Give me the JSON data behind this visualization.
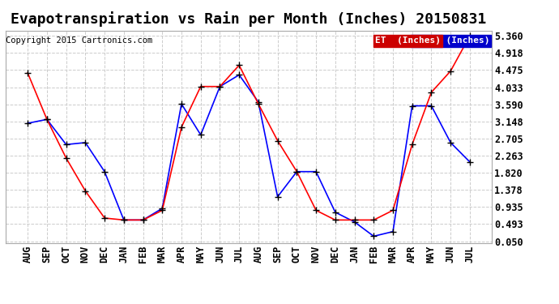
{
  "title": "Evapotranspiration vs Rain per Month (Inches) 20150831",
  "copyright": "Copyright 2015 Cartronics.com",
  "months": [
    "AUG",
    "SEP",
    "OCT",
    "NOV",
    "DEC",
    "JAN",
    "FEB",
    "MAR",
    "APR",
    "MAY",
    "JUN",
    "JUL",
    "AUG",
    "SEP",
    "OCT",
    "NOV",
    "DEC",
    "JAN",
    "FEB",
    "MAR",
    "APR",
    "MAY",
    "JUN",
    "JUL"
  ],
  "rain": [
    3.1,
    3.2,
    2.55,
    2.6,
    1.85,
    0.6,
    0.6,
    0.9,
    3.6,
    2.8,
    4.05,
    4.35,
    3.65,
    1.2,
    1.85,
    1.85,
    0.8,
    0.55,
    0.18,
    0.3,
    3.55,
    3.55,
    2.6,
    2.1
  ],
  "et": [
    4.4,
    3.2,
    2.2,
    1.35,
    0.65,
    0.6,
    0.6,
    0.85,
    3.0,
    4.05,
    4.05,
    4.6,
    3.6,
    2.65,
    1.85,
    0.85,
    0.6,
    0.6,
    0.6,
    0.85,
    2.55,
    3.9,
    4.45,
    5.36
  ],
  "rain_color": "#0000ff",
  "et_color": "#ff0000",
  "background_color": "#ffffff",
  "grid_color": "#cccccc",
  "yticks": [
    0.05,
    0.493,
    0.935,
    1.378,
    1.82,
    2.263,
    2.705,
    3.148,
    3.59,
    4.033,
    4.475,
    4.918,
    5.36
  ],
  "ylim": [
    0.0,
    5.5
  ],
  "legend_rain_label": "Rain  (Inches)",
  "legend_et_label": "ET  (Inches)",
  "legend_rain_bg": "#0000cc",
  "legend_et_bg": "#cc0000",
  "title_fontsize": 13,
  "tick_fontsize": 8.5,
  "marker": "+",
  "marker_color": "#000000",
  "marker_size": 6
}
